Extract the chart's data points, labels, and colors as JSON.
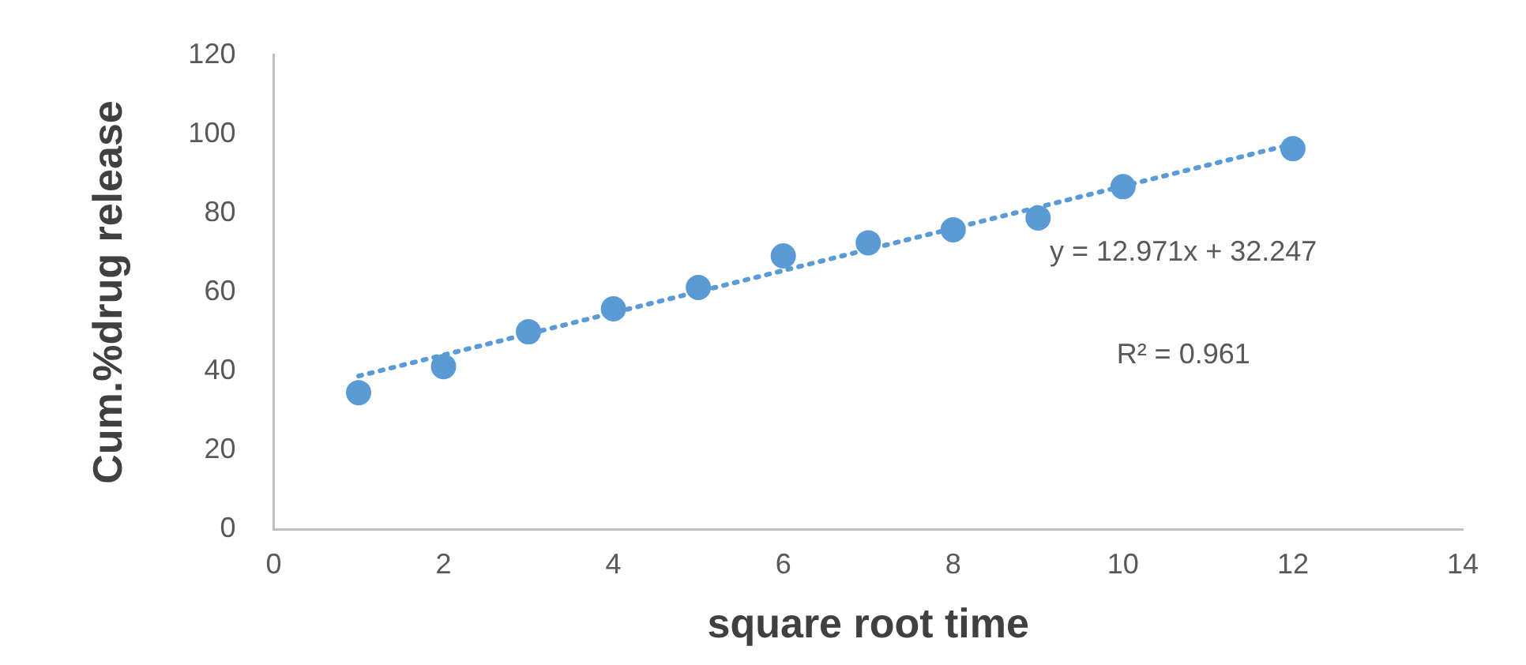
{
  "chart_data": {
    "type": "scatter",
    "xlabel": "square root time",
    "ylabel": "Cum.%drug release",
    "xlim": [
      0,
      14
    ],
    "xticks": [
      0,
      2,
      4,
      6,
      8,
      10,
      12,
      14
    ],
    "ylim": [
      0,
      120
    ],
    "yticks": [
      0,
      20,
      40,
      60,
      80,
      100,
      120
    ],
    "grid": false,
    "legend": false,
    "marker": "circle",
    "series": [
      {
        "color": "#5b9bd5",
        "x": [
          1,
          2,
          3,
          4,
          5,
          6,
          7,
          8,
          9,
          10,
          12
        ],
        "values": [
          34.6,
          41.2,
          50,
          55.8,
          61.2,
          69.2,
          72.5,
          75.8,
          78.8,
          86.7,
          96.3
        ]
      },
      {
        "type": "line",
        "color": "#5b9bd5",
        "line_style": "dotted",
        "marker": "none",
        "x": [
          1,
          12
        ],
        "values": [
          38.8,
          97.5
        ]
      }
    ],
    "annotations": [
      "y = 12.971x + 32.247",
      "R² = 0.961"
    ]
  }
}
